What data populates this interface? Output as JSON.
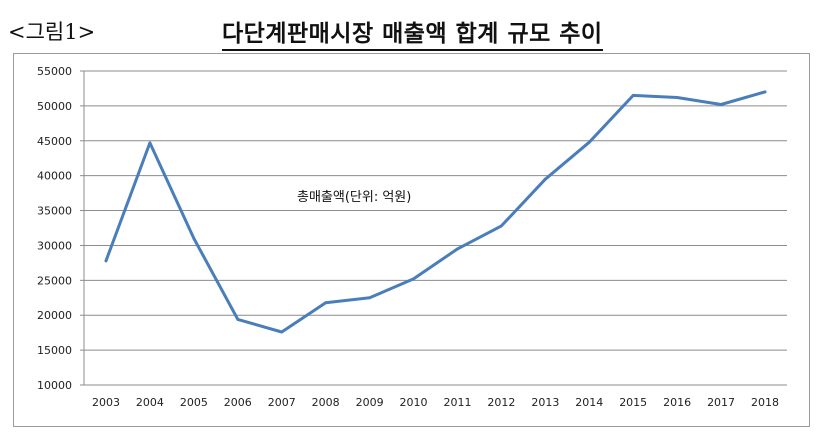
{
  "header": {
    "figure_label": "<그림1>",
    "title": "다단계판매시장 매출액 합계 규모 추이"
  },
  "colors": {
    "line": "#4a7ebb",
    "grid": "#8c8c8c",
    "axis": "#8c8c8c"
  },
  "chart_data": {
    "type": "line",
    "title": "다단계판매시장 매출액 합계 규모 추이",
    "annotation": "총매출액(단위: 억원)",
    "x": [
      "2003",
      "2004",
      "2005",
      "2006",
      "2007",
      "2008",
      "2009",
      "2010",
      "2011",
      "2012",
      "2013",
      "2014",
      "2015",
      "2016",
      "2017",
      "2018"
    ],
    "series": [
      {
        "values": [
          27800,
          44700,
          31000,
          19400,
          17600,
          21800,
          22500,
          25200,
          29500,
          32800,
          39500,
          44800,
          51500,
          51200,
          50200,
          52000
        ]
      }
    ],
    "ylim": [
      10000,
      55000
    ],
    "yticks": [
      10000,
      15000,
      20000,
      25000,
      30000,
      35000,
      40000,
      45000,
      50000,
      55000
    ],
    "grid": true,
    "legend": "none"
  }
}
